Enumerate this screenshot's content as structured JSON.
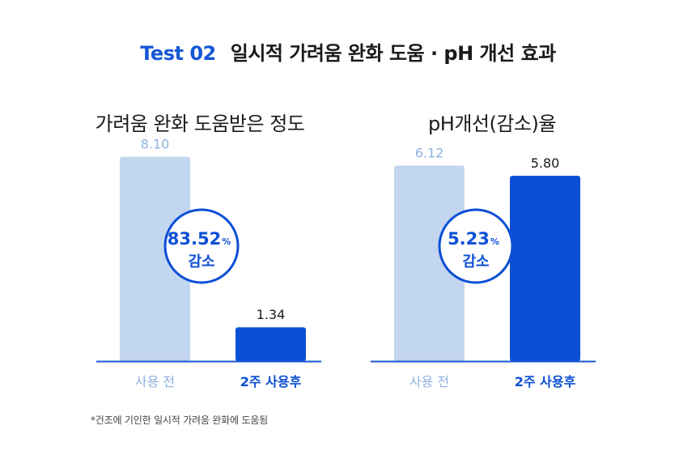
{
  "header": {
    "tag": "Test 02",
    "title": "일시적 가려움 완화 도움 · pH 개선 효과"
  },
  "footnote": "*건조에 기인한 일시적 가려움 완화에 도움됨",
  "colors": {
    "light": "#c3d6ef",
    "dark": "#0b4fd6",
    "axis": "#1557d6",
    "before_label": "#8fb1e0",
    "after_label": "#0b4fd6"
  },
  "chart_data": [
    {
      "type": "bar",
      "title": "가려움 완화 도움받은 정도",
      "categories": [
        "사용 전",
        "2주 사용후"
      ],
      "values": [
        8.1,
        1.34
      ],
      "value_labels": [
        "8.10",
        "1.34"
      ],
      "badge": {
        "value": "83.52",
        "unit": "%",
        "label": "감소"
      },
      "ylim": [
        0,
        9.5
      ]
    },
    {
      "type": "bar",
      "title": "pH개선(감소)율",
      "categories": [
        "사용 전",
        "2주 사용후"
      ],
      "values": [
        6.12,
        5.8
      ],
      "value_labels": [
        "6.12",
        "5.80"
      ],
      "badge": {
        "value": "5.23",
        "unit": "%",
        "label": "감소"
      },
      "ylim": [
        0,
        7.5
      ]
    }
  ]
}
